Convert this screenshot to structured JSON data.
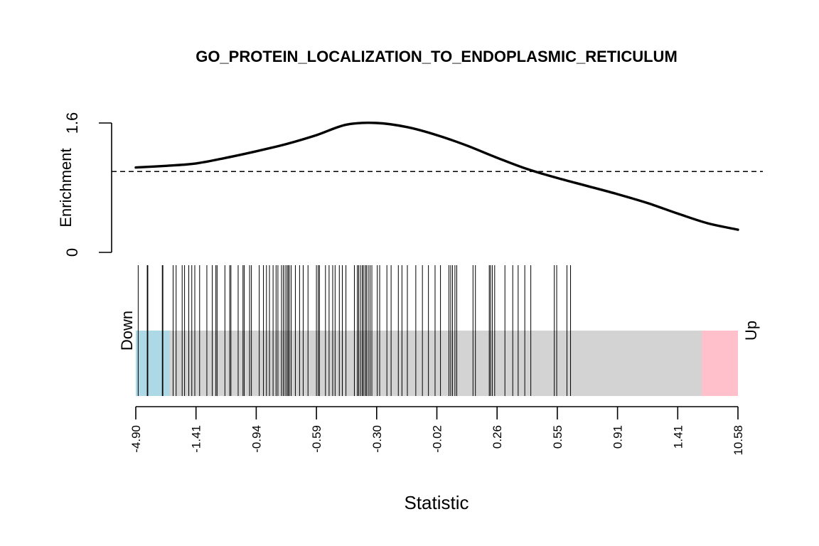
{
  "chart_data": {
    "type": "line",
    "title": "GO_PROTEIN_LOCALIZATION_TO_ENDOPLASMIC_RETICULUM",
    "xlabel": "Statistic",
    "ylabel": "Enrichment",
    "ylim": [
      0,
      1.6
    ],
    "y_ticks": [
      "0",
      "1.6"
    ],
    "reference_line": 1.0,
    "x_tick_labels": [
      "-4.90",
      "-1.41",
      "-0.94",
      "-0.59",
      "-0.30",
      "-0.02",
      "0.26",
      "0.55",
      "0.91",
      "1.41",
      "10.58"
    ],
    "enrichment_curve": {
      "x": [
        0.0,
        0.05,
        0.1,
        0.15,
        0.2,
        0.25,
        0.3,
        0.35,
        0.4,
        0.45,
        0.5,
        0.55,
        0.6,
        0.65,
        0.7,
        0.75,
        0.8,
        0.85,
        0.9,
        0.95,
        1.0
      ],
      "y": [
        1.05,
        1.07,
        1.1,
        1.17,
        1.25,
        1.34,
        1.45,
        1.58,
        1.6,
        1.55,
        1.45,
        1.32,
        1.17,
        1.03,
        0.92,
        0.82,
        0.72,
        0.61,
        0.48,
        0.36,
        0.28
      ]
    },
    "barcode": {
      "down_label": "Down",
      "up_label": "Up",
      "down_region": [
        0.0,
        0.056
      ],
      "up_region": [
        0.94,
        1.0
      ],
      "down_color": "#ADD8E6",
      "middle_color": "#D3D3D3",
      "up_color": "#FFC0CB",
      "gene_positions": [
        0.004,
        0.019,
        0.02,
        0.044,
        0.045,
        0.062,
        0.067,
        0.077,
        0.081,
        0.088,
        0.093,
        0.098,
        0.106,
        0.118,
        0.127,
        0.133,
        0.135,
        0.148,
        0.156,
        0.158,
        0.17,
        0.178,
        0.18,
        0.189,
        0.192,
        0.205,
        0.212,
        0.217,
        0.222,
        0.228,
        0.233,
        0.236,
        0.242,
        0.245,
        0.248,
        0.251,
        0.253,
        0.255,
        0.258,
        0.265,
        0.272,
        0.278,
        0.286,
        0.3,
        0.303,
        0.305,
        0.315,
        0.321,
        0.327,
        0.331,
        0.338,
        0.343,
        0.349,
        0.363,
        0.368,
        0.37,
        0.373,
        0.376,
        0.378,
        0.381,
        0.383,
        0.386,
        0.389,
        0.392,
        0.401,
        0.405,
        0.417,
        0.424,
        0.436,
        0.442,
        0.451,
        0.465,
        0.476,
        0.486,
        0.497,
        0.506,
        0.52,
        0.523,
        0.526,
        0.53,
        0.533,
        0.56,
        0.564,
        0.587,
        0.589,
        0.592,
        0.596,
        0.613,
        0.626,
        0.635,
        0.646,
        0.656,
        0.695,
        0.699,
        0.716,
        0.722
      ]
    }
  }
}
